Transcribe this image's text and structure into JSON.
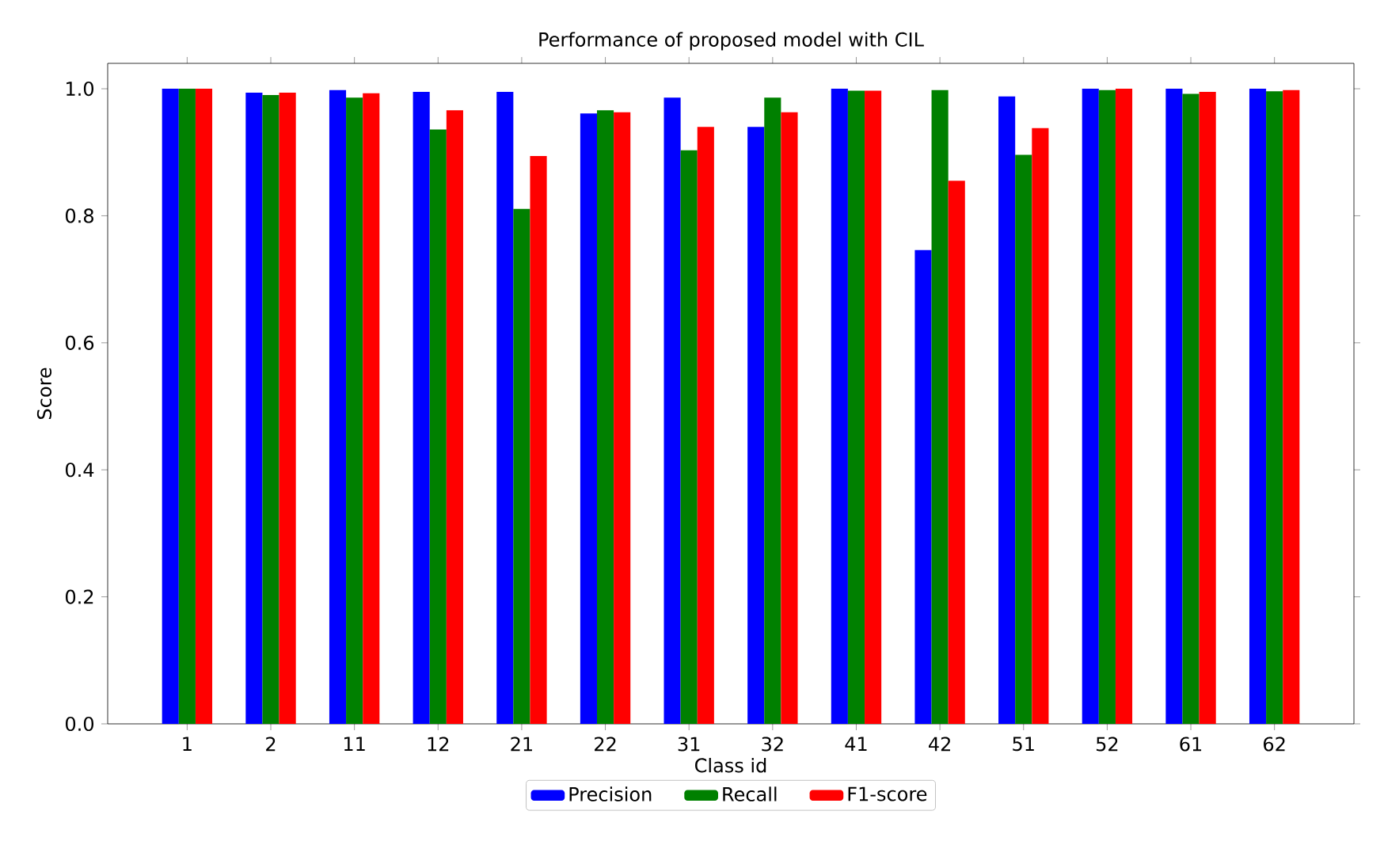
{
  "chart_data": {
    "type": "bar",
    "title": "Performance of proposed model with CIL",
    "xlabel": "Class id",
    "ylabel": "Score",
    "categories": [
      "1",
      "2",
      "11",
      "12",
      "21",
      "22",
      "31",
      "32",
      "41",
      "42",
      "51",
      "52",
      "61",
      "62"
    ],
    "series": [
      {
        "name": "Precision",
        "color": "#0000ff",
        "values": [
          1.0,
          0.994,
          0.998,
          0.995,
          0.995,
          0.961,
          0.986,
          0.94,
          1.0,
          0.746,
          0.988,
          1.0,
          1.0,
          1.0
        ]
      },
      {
        "name": "Recall",
        "color": "#008000",
        "values": [
          1.0,
          0.99,
          0.986,
          0.936,
          0.811,
          0.966,
          0.903,
          0.986,
          0.997,
          0.998,
          0.896,
          0.998,
          0.992,
          0.996
        ]
      },
      {
        "name": "F1-score",
        "color": "#ff0000",
        "values": [
          1.0,
          0.994,
          0.993,
          0.966,
          0.894,
          0.963,
          0.94,
          0.963,
          0.997,
          0.855,
          0.938,
          1.0,
          0.995,
          0.998
        ]
      }
    ],
    "ylim": [
      0,
      1.04
    ],
    "yticks": [
      {
        "value": 0,
        "label": "0.0"
      },
      {
        "value": 0.2,
        "label": "0.2"
      },
      {
        "value": 0.4,
        "label": "0.4"
      },
      {
        "value": 0.6,
        "label": "0.6"
      },
      {
        "value": 0.8,
        "label": "0.8"
      },
      {
        "value": 1.0,
        "label": "1.0"
      }
    ],
    "legend": "bottom"
  }
}
